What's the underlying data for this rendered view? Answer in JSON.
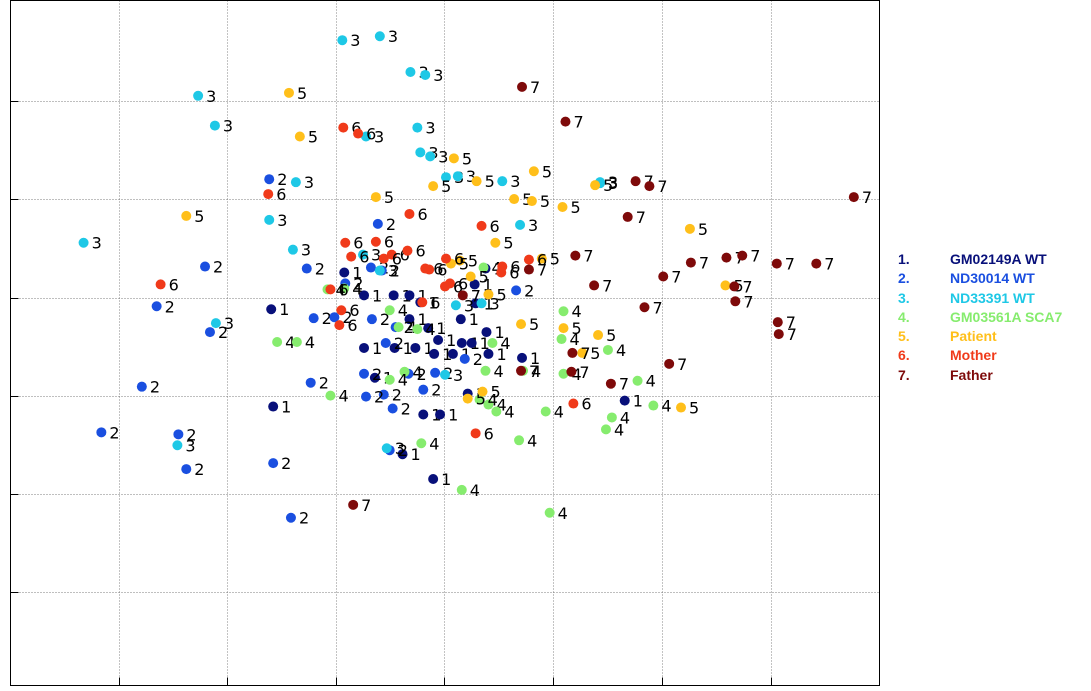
{
  "chart_data": {
    "type": "scatter",
    "title": "",
    "xlabel": "",
    "ylabel": "",
    "xlim": [
      0,
      880
    ],
    "ylim": [
      -690,
      0
    ],
    "grid": true,
    "legend_position": "right",
    "series": [
      {
        "key": "1",
        "name": "GM02149A WT",
        "color": "#08107a",
        "points": [
          [
            388,
            -297
          ],
          [
            264,
            -311
          ],
          [
            358,
            -297
          ],
          [
            404,
            -297
          ],
          [
            404,
            -321
          ],
          [
            423,
            -330
          ],
          [
            456,
            -321
          ],
          [
            415,
            -304
          ],
          [
            482,
            -334
          ],
          [
            358,
            -350
          ],
          [
            433,
            -342
          ],
          [
            389,
            -350
          ],
          [
            410,
            -350
          ],
          [
            457,
            -345
          ],
          [
            448,
            -356
          ],
          [
            484,
            -356
          ],
          [
            429,
            -356
          ],
          [
            518,
            -360
          ],
          [
            463,
            -396
          ],
          [
            418,
            -417
          ],
          [
            435,
            -417
          ],
          [
            266,
            -409
          ],
          [
            397,
            -457
          ],
          [
            428,
            -482
          ],
          [
            622,
            -403
          ],
          [
            369,
            -380
          ],
          [
            470,
            -286
          ],
          [
            471,
            -305
          ],
          [
            481,
            -270
          ],
          [
            338,
            -274
          ],
          [
            467,
            -345
          ]
        ]
      },
      {
        "key": "2",
        "name": "ND30014 WT",
        "color": "#1a4fe0",
        "points": [
          [
            262,
            -180
          ],
          [
            372,
            -225
          ],
          [
            365,
            -269
          ],
          [
            197,
            -268
          ],
          [
            339,
            -285
          ],
          [
            300,
            -270
          ],
          [
            307,
            -320
          ],
          [
            328,
            -319
          ],
          [
            148,
            -308
          ],
          [
            202,
            -334
          ],
          [
            512,
            -292
          ],
          [
            366,
            -321
          ],
          [
            390,
            -329
          ],
          [
            380,
            -345
          ],
          [
            304,
            -385
          ],
          [
            358,
            -376
          ],
          [
            403,
            -376
          ],
          [
            378,
            -397
          ],
          [
            418,
            -392
          ],
          [
            360,
            -399
          ],
          [
            387,
            -411
          ],
          [
            133,
            -389
          ],
          [
            92,
            -435
          ],
          [
            170,
            -437
          ],
          [
            178,
            -472
          ],
          [
            266,
            -466
          ],
          [
            284,
            -521
          ],
          [
            384,
            -453
          ],
          [
            376,
            -272
          ],
          [
            460,
            -361
          ],
          [
            430,
            -375
          ]
        ]
      },
      {
        "key": "3",
        "name": "ND33391 WT",
        "color": "#1ec8e6",
        "points": [
          [
            336,
            -40
          ],
          [
            374,
            -36
          ],
          [
            405,
            -72
          ],
          [
            420,
            -75
          ],
          [
            190,
            -96
          ],
          [
            207,
            -126
          ],
          [
            412,
            -128
          ],
          [
            360,
            -137
          ],
          [
            415,
            -153
          ],
          [
            425,
            -157
          ],
          [
            289,
            -183
          ],
          [
            441,
            -178
          ],
          [
            453,
            -177
          ],
          [
            498,
            -182
          ],
          [
            597,
            -183
          ],
          [
            597,
            -184
          ],
          [
            262,
            -221
          ],
          [
            516,
            -226
          ],
          [
            74,
            -244
          ],
          [
            286,
            -251
          ],
          [
            357,
            -256
          ],
          [
            374,
            -272
          ],
          [
            208,
            -325
          ],
          [
            169,
            -448
          ],
          [
            381,
            -451
          ],
          [
            440,
            -377
          ],
          [
            477,
            -305
          ],
          [
            451,
            -307
          ]
        ]
      },
      {
        "key": "4",
        "name": "GM03561A SCA7",
        "color": "#86ec6e",
        "points": [
          [
            384,
            -312
          ],
          [
            393,
            -329
          ],
          [
            560,
            -313
          ],
          [
            270,
            -344
          ],
          [
            290,
            -344
          ],
          [
            488,
            -345
          ],
          [
            605,
            -352
          ],
          [
            558,
            -341
          ],
          [
            519,
            -373
          ],
          [
            481,
            -373
          ],
          [
            399,
            -374
          ],
          [
            384,
            -382
          ],
          [
            635,
            -383
          ],
          [
            324,
            -398
          ],
          [
            542,
            -414
          ],
          [
            484,
            -407
          ],
          [
            492,
            -414
          ],
          [
            609,
            -420
          ],
          [
            603,
            -432
          ],
          [
            651,
            -408
          ],
          [
            416,
            -446
          ],
          [
            515,
            -443
          ],
          [
            457,
            -493
          ],
          [
            546,
            -516
          ],
          [
            338,
            -290
          ],
          [
            412,
            -331
          ],
          [
            321,
            -291
          ],
          [
            479,
            -269
          ],
          [
            475,
            -402
          ],
          [
            560,
            -376
          ]
        ]
      },
      {
        "key": "5",
        "name": "Patient",
        "color": "#ffbf1a",
        "points": [
          [
            282,
            -93
          ],
          [
            293,
            -137
          ],
          [
            449,
            -159
          ],
          [
            530,
            -172
          ],
          [
            472,
            -182
          ],
          [
            592,
            -186
          ],
          [
            370,
            -198
          ],
          [
            428,
            -187
          ],
          [
            510,
            -200
          ],
          [
            528,
            -202
          ],
          [
            559,
            -208
          ],
          [
            178,
            -217
          ],
          [
            688,
            -230
          ],
          [
            491,
            -244
          ],
          [
            455,
            -262
          ],
          [
            538,
            -260
          ],
          [
            466,
            -278
          ],
          [
            484,
            -296
          ],
          [
            724,
            -287
          ],
          [
            517,
            -326
          ],
          [
            560,
            -330
          ],
          [
            595,
            -337
          ],
          [
            579,
            -355
          ],
          [
            463,
            -401
          ],
          [
            679,
            -410
          ],
          [
            478,
            -394
          ],
          [
            446,
            -265
          ]
        ]
      },
      {
        "key": "6",
        "name": "Mother",
        "color": "#f03a1a",
        "points": [
          [
            337,
            -128
          ],
          [
            352,
            -134
          ],
          [
            261,
            -195
          ],
          [
            404,
            -215
          ],
          [
            477,
            -227
          ],
          [
            339,
            -244
          ],
          [
            370,
            -243
          ],
          [
            386,
            -256
          ],
          [
            402,
            -252
          ],
          [
            345,
            -258
          ],
          [
            441,
            -260
          ],
          [
            378,
            -260
          ],
          [
            420,
            -270
          ],
          [
            445,
            -285
          ],
          [
            498,
            -268
          ],
          [
            152,
            -286
          ],
          [
            324,
            -291
          ],
          [
            335,
            -312
          ],
          [
            333,
            -327
          ],
          [
            417,
            -304
          ],
          [
            497,
            -274
          ],
          [
            525,
            -261
          ],
          [
            570,
            -406
          ],
          [
            471,
            -436
          ],
          [
            440,
            -288
          ],
          [
            424,
            -271
          ]
        ]
      },
      {
        "key": "7",
        "name": "Father",
        "color": "#7e0a0a",
        "points": [
          [
            518,
            -87
          ],
          [
            562,
            -122
          ],
          [
            633,
            -182
          ],
          [
            647,
            -187
          ],
          [
            854,
            -198
          ],
          [
            625,
            -218
          ],
          [
            572,
            -257
          ],
          [
            525,
            -271
          ],
          [
            591,
            -287
          ],
          [
            689,
            -264
          ],
          [
            725,
            -259
          ],
          [
            741,
            -257
          ],
          [
            776,
            -265
          ],
          [
            816,
            -265
          ],
          [
            661,
            -278
          ],
          [
            733,
            -288
          ],
          [
            734,
            -303
          ],
          [
            642,
            -309
          ],
          [
            777,
            -324
          ],
          [
            778,
            -336
          ],
          [
            569,
            -355
          ],
          [
            517,
            -373
          ],
          [
            568,
            -374
          ],
          [
            667,
            -366
          ],
          [
            608,
            -386
          ],
          [
            347,
            -508
          ],
          [
            458,
            -297
          ]
        ]
      }
    ]
  },
  "legend": {
    "items": [
      {
        "number": "1.",
        "label": "GM02149A WT"
      },
      {
        "number": "2.",
        "label": "ND30014 WT"
      },
      {
        "number": "3.",
        "label": "ND33391 WT"
      },
      {
        "number": "4.",
        "label": "GM03561A SCA7"
      },
      {
        "number": "5.",
        "label": "Patient"
      },
      {
        "number": "6.",
        "label": "Mother"
      },
      {
        "number": "7.",
        "label": "Father"
      }
    ]
  }
}
